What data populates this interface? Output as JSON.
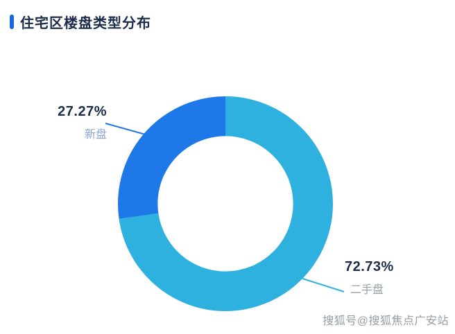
{
  "header": {
    "title": "住宅区楼盘类型分布"
  },
  "chart_data": {
    "type": "pie",
    "donut": true,
    "title": "住宅区楼盘类型分布",
    "start_angle_deg": 0,
    "direction": "clockwise",
    "inner_radius_ratio": 0.63,
    "legend_position": "none",
    "categories": [
      "二手盘",
      "新盘"
    ],
    "values": [
      72.73,
      27.27
    ],
    "segments": [
      {
        "label": "二手盘",
        "value": 72.73,
        "display": "72.73%",
        "color": "#2fb1e0"
      },
      {
        "label": "新盘",
        "value": 27.27,
        "display": "27.27%",
        "color": "#1e78e8"
      }
    ]
  },
  "colors": {
    "accent_bar": "#1866e0",
    "title_text": "#1c2b4a",
    "percent_text": "#1c2b4a",
    "label_new": "#8ba4dc",
    "label_secondhand": "#99a0a8",
    "watermark": "#979ca3"
  },
  "watermark": {
    "text": "搜狐号@搜狐焦点广安站"
  }
}
